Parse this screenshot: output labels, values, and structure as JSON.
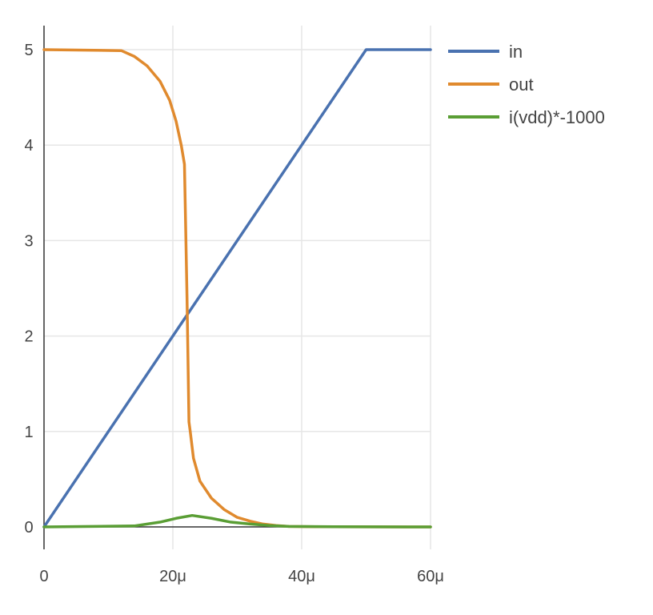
{
  "chart_data": {
    "type": "line",
    "xlim": [
      0,
      60
    ],
    "ylim": [
      0,
      5
    ],
    "x_ticks": [
      0,
      20,
      40,
      60
    ],
    "x_tick_labels": [
      "0",
      "20μ",
      "40μ",
      "60μ"
    ],
    "y_ticks": [
      0,
      1,
      2,
      3,
      4,
      5
    ],
    "y_tick_labels": [
      "0",
      "1",
      "2",
      "3",
      "4",
      "5"
    ],
    "grid": true,
    "legend_position": "top-right",
    "series": [
      {
        "name": "in",
        "color": "#4a72b0",
        "x": [
          0,
          50,
          60
        ],
        "y": [
          0,
          5,
          5
        ]
      },
      {
        "name": "out",
        "color": "#e08a2e",
        "x": [
          0,
          12,
          14,
          16,
          18,
          19.5,
          20.5,
          21.3,
          21.8,
          22.2,
          22.5,
          22.7,
          23.2,
          24.2,
          26,
          28,
          30,
          32,
          34,
          36,
          38,
          42,
          50,
          60
        ],
        "y": [
          5,
          4.99,
          4.93,
          4.83,
          4.67,
          4.47,
          4.25,
          4.0,
          3.8,
          2.4,
          1.1,
          1.0,
          0.72,
          0.48,
          0.3,
          0.18,
          0.1,
          0.06,
          0.03,
          0.015,
          0.005,
          0.002,
          0.001,
          0
        ]
      },
      {
        "name": "i(vdd)*-1000",
        "color": "#5a9e35",
        "x": [
          0,
          14,
          18,
          20.5,
          23,
          26,
          29,
          32,
          35,
          38,
          45,
          60
        ],
        "y": [
          0,
          0.01,
          0.05,
          0.09,
          0.12,
          0.09,
          0.05,
          0.03,
          0.015,
          0.005,
          0.002,
          0
        ]
      }
    ]
  }
}
